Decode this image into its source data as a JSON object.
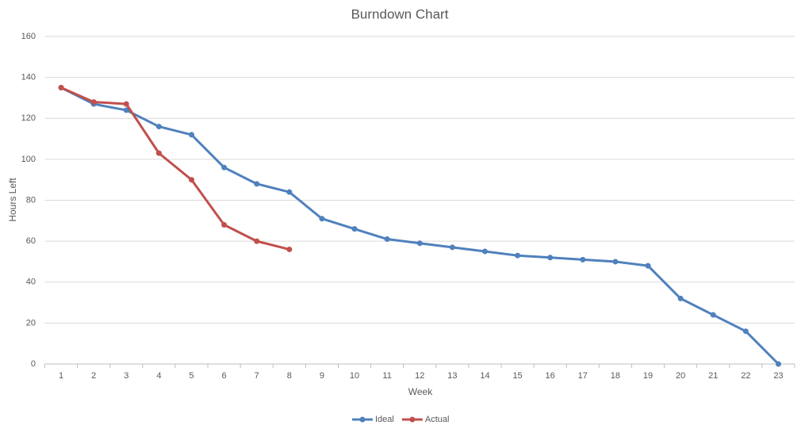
{
  "chart_data": {
    "type": "line",
    "title": "Burndown Chart",
    "x_label": "Week",
    "y_label": "Hours Left",
    "categories": [
      "1",
      "2",
      "3",
      "4",
      "5",
      "6",
      "7",
      "8",
      "9",
      "10",
      "11",
      "12",
      "13",
      "14",
      "15",
      "16",
      "17",
      "18",
      "19",
      "20",
      "21",
      "22",
      "23"
    ],
    "series": [
      {
        "name": "Ideal",
        "color": "#4F81BD",
        "values": [
          135,
          127,
          124,
          116,
          112,
          96,
          88,
          84,
          71,
          66,
          61,
          59,
          57,
          55,
          53,
          52,
          51,
          50,
          48,
          32,
          24,
          16,
          0
        ]
      },
      {
        "name": "Actual",
        "color": "#C0504D",
        "values": [
          135,
          128,
          127,
          103,
          90,
          68,
          60,
          56,
          null,
          null,
          null,
          null,
          null,
          null,
          null,
          null,
          null,
          null,
          null,
          null,
          null,
          null,
          null
        ]
      }
    ],
    "ylim": [
      0,
      160
    ],
    "yticks": [
      0,
      20,
      40,
      60,
      80,
      100,
      120,
      140,
      160
    ],
    "grid": true,
    "legend": "bottom"
  }
}
